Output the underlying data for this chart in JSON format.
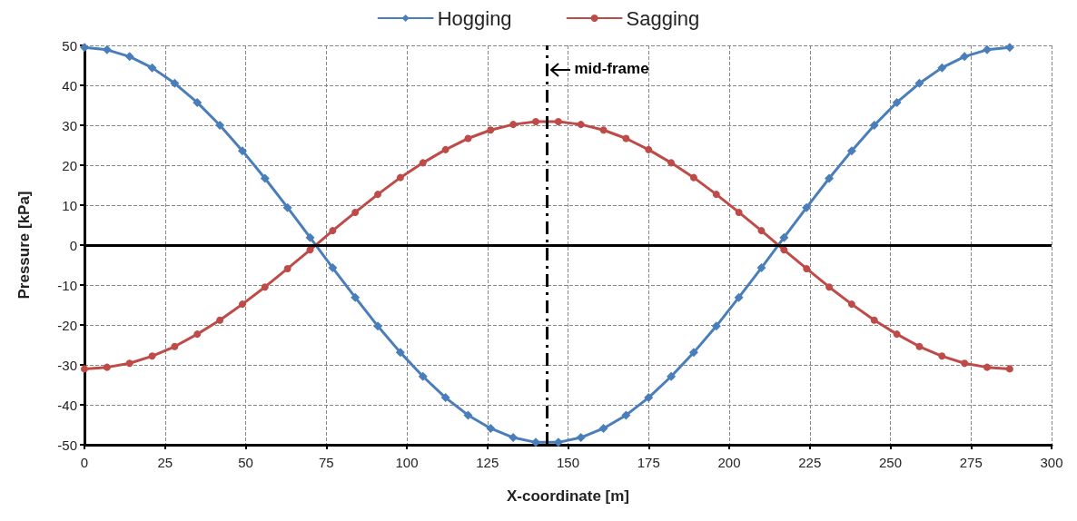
{
  "chart_data": {
    "type": "line",
    "xlabel": "X-coordinate [m]",
    "ylabel": "Pressure [kPa]",
    "x": [
      0,
      7,
      14,
      21,
      28,
      35,
      42,
      49,
      56,
      63,
      70,
      77,
      84,
      91,
      98,
      105,
      112,
      119,
      126,
      133,
      140,
      147,
      154,
      161,
      168,
      175,
      182,
      189,
      196,
      203,
      210,
      217,
      224,
      231,
      238,
      245,
      252,
      259,
      266,
      273,
      280,
      287
    ],
    "series": [
      {
        "name": "Hogging",
        "color": "#4a7ebb",
        "marker": "diamond",
        "values": [
          49.5,
          48.9,
          47.2,
          44.4,
          40.5,
          35.7,
          30.0,
          23.6,
          16.7,
          9.4,
          1.9,
          -5.7,
          -13.1,
          -20.3,
          -26.9,
          -32.9,
          -38.2,
          -42.6,
          -45.9,
          -48.2,
          -49.4,
          -49.4,
          -48.2,
          -45.9,
          -42.6,
          -38.2,
          -32.9,
          -26.9,
          -20.3,
          -13.1,
          -5.7,
          1.9,
          9.4,
          16.7,
          23.6,
          30.0,
          35.7,
          40.5,
          44.4,
          47.2,
          48.9,
          49.5
        ]
      },
      {
        "name": "Sagging",
        "color": "#be4b48",
        "marker": "circle",
        "values": [
          -31,
          -30.6,
          -29.6,
          -27.8,
          -25.4,
          -22.3,
          -18.8,
          -14.8,
          -10.5,
          -5.9,
          -1.2,
          3.6,
          8.2,
          12.7,
          16.9,
          20.6,
          23.9,
          26.7,
          28.8,
          30.2,
          30.9,
          30.9,
          30.2,
          28.8,
          26.7,
          23.9,
          20.6,
          16.9,
          12.7,
          8.2,
          3.6,
          -1.2,
          -5.9,
          -10.5,
          -14.8,
          -18.8,
          -22.3,
          -25.4,
          -27.8,
          -29.6,
          -30.6,
          -31
        ]
      }
    ],
    "xlim": [
      0,
      300
    ],
    "xticks": [
      0,
      25,
      50,
      75,
      100,
      125,
      150,
      175,
      200,
      225,
      250,
      275,
      300
    ],
    "ylim": [
      -50,
      50
    ],
    "yticks": [
      -50,
      -40,
      -30,
      -20,
      -10,
      0,
      10,
      20,
      30,
      40,
      50
    ],
    "ref_lines": [
      {
        "axis": "x",
        "value": 143.5,
        "label": "mid-frame",
        "color": "#000000",
        "line_style": "dashed"
      }
    ],
    "grid": true,
    "legend": "top",
    "line_style": "solid"
  }
}
